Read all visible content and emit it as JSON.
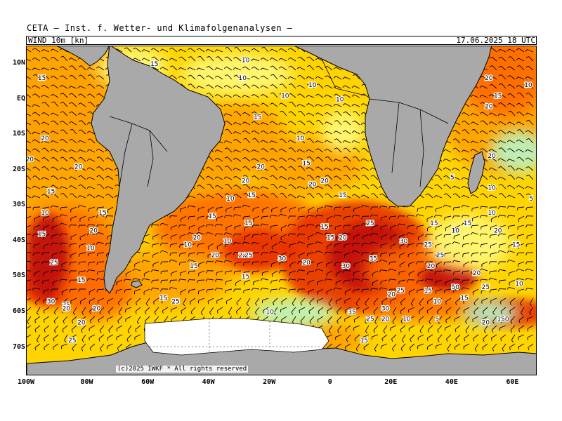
{
  "header": {
    "title": "CETA — Inst. f. Wetter- und Klimafolgenanalysen —",
    "parameter": "WIND 10m [kn]",
    "timestamp": "17.06.2025 18 UTC"
  },
  "map": {
    "lon_range": [
      -100,
      68
    ],
    "lat_range": [
      -78,
      15
    ],
    "lat_ticks": [
      {
        "value": 10,
        "label": "10N"
      },
      {
        "value": 0,
        "label": "EQ"
      },
      {
        "value": -10,
        "label": "10S"
      },
      {
        "value": -20,
        "label": "20S"
      },
      {
        "value": -30,
        "label": "30S"
      },
      {
        "value": -40,
        "label": "40S"
      },
      {
        "value": -50,
        "label": "50S"
      },
      {
        "value": -60,
        "label": "60S"
      },
      {
        "value": -70,
        "label": "70S"
      }
    ],
    "lon_ticks": [
      {
        "value": -100,
        "label": "100W"
      },
      {
        "value": -80,
        "label": "80W"
      },
      {
        "value": -60,
        "label": "60W"
      },
      {
        "value": -40,
        "label": "40W"
      },
      {
        "value": -20,
        "label": "20W"
      },
      {
        "value": 0,
        "label": "0"
      },
      {
        "value": 20,
        "label": "20E"
      },
      {
        "value": 40,
        "label": "40E"
      },
      {
        "value": 60,
        "label": "60E"
      }
    ],
    "colors": {
      "land": "#a9a9a9",
      "sea_calm": "#b9f5c8",
      "sea_light": "#fff97a",
      "sea_moderate": "#ffd400",
      "sea_fresh": "#ffa000",
      "sea_strong": "#ff6a00",
      "sea_gale": "#e83000",
      "sea_storm": "#c01010",
      "ice": "#ffffff"
    },
    "speed_labels": [
      {
        "text": "10",
        "lon": -28,
        "lat": 11
      },
      {
        "text": "15",
        "lon": -58,
        "lat": 10
      },
      {
        "text": "10",
        "lon": -29,
        "lat": 6
      },
      {
        "text": "15",
        "lon": -95,
        "lat": 6
      },
      {
        "text": "10",
        "lon": -6,
        "lat": 4
      },
      {
        "text": "10",
        "lon": -15,
        "lat": 1
      },
      {
        "text": "10",
        "lon": 3,
        "lat": 0
      },
      {
        "text": "20",
        "lon": 52,
        "lat": 6
      },
      {
        "text": "10",
        "lon": 65,
        "lat": 4
      },
      {
        "text": "15",
        "lon": 55,
        "lat": 1
      },
      {
        "text": "20",
        "lon": 52,
        "lat": -2
      },
      {
        "text": "15",
        "lon": -24,
        "lat": -5
      },
      {
        "text": "10",
        "lon": -10,
        "lat": -11
      },
      {
        "text": "20",
        "lon": -94,
        "lat": -11
      },
      {
        "text": "20",
        "lon": -99,
        "lat": -17
      },
      {
        "text": "20",
        "lon": 53,
        "lat": -16
      },
      {
        "text": "15",
        "lon": -8,
        "lat": -18
      },
      {
        "text": "20",
        "lon": -23,
        "lat": -19
      },
      {
        "text": "20",
        "lon": -83,
        "lat": -19
      },
      {
        "text": "5",
        "lon": 40,
        "lat": -22
      },
      {
        "text": "20",
        "lon": -2,
        "lat": -23
      },
      {
        "text": "20",
        "lon": -28,
        "lat": -23
      },
      {
        "text": "20",
        "lon": -6,
        "lat": -24
      },
      {
        "text": "10",
        "lon": 53,
        "lat": -25
      },
      {
        "text": "15",
        "lon": -92,
        "lat": -26
      },
      {
        "text": "15",
        "lon": 4,
        "lat": -27
      },
      {
        "text": "10",
        "lon": -33,
        "lat": -28
      },
      {
        "text": "15",
        "lon": -26,
        "lat": -27
      },
      {
        "text": "5",
        "lon": 66,
        "lat": -28
      },
      {
        "text": "10",
        "lon": -94,
        "lat": -32
      },
      {
        "text": "15",
        "lon": -75,
        "lat": -32
      },
      {
        "text": "15",
        "lon": -39,
        "lat": -33
      },
      {
        "text": "10",
        "lon": 53,
        "lat": -32
      },
      {
        "text": "15",
        "lon": -27,
        "lat": -35
      },
      {
        "text": "15",
        "lon": 34,
        "lat": -35
      },
      {
        "text": "15",
        "lon": 45,
        "lat": -35
      },
      {
        "text": "25",
        "lon": 13,
        "lat": -35
      },
      {
        "text": "15",
        "lon": -2,
        "lat": -36
      },
      {
        "text": "10",
        "lon": 41,
        "lat": -37
      },
      {
        "text": "20",
        "lon": 55,
        "lat": -37
      },
      {
        "text": "15",
        "lon": -95,
        "lat": -38
      },
      {
        "text": "20",
        "lon": -78,
        "lat": -37
      },
      {
        "text": "20",
        "lon": -44,
        "lat": -39
      },
      {
        "text": "15",
        "lon": 0,
        "lat": -39
      },
      {
        "text": "20",
        "lon": 4,
        "lat": -39
      },
      {
        "text": "10",
        "lon": -47,
        "lat": -41
      },
      {
        "text": "10",
        "lon": -34,
        "lat": -40
      },
      {
        "text": "30",
        "lon": 24,
        "lat": -40
      },
      {
        "text": "15",
        "lon": 61,
        "lat": -41
      },
      {
        "text": "10",
        "lon": -79,
        "lat": -42
      },
      {
        "text": "25",
        "lon": 32,
        "lat": -41
      },
      {
        "text": "20",
        "lon": -38,
        "lat": -44
      },
      {
        "text": "22",
        "lon": -29,
        "lat": -44
      },
      {
        "text": "25",
        "lon": -27,
        "lat": -44
      },
      {
        "text": "35",
        "lon": 14,
        "lat": -45
      },
      {
        "text": "25",
        "lon": 36,
        "lat": -44
      },
      {
        "text": "30",
        "lon": -16,
        "lat": -45
      },
      {
        "text": "25",
        "lon": -91,
        "lat": -46
      },
      {
        "text": "15",
        "lon": -45,
        "lat": -47
      },
      {
        "text": "20",
        "lon": -8,
        "lat": -46
      },
      {
        "text": "30",
        "lon": 5,
        "lat": -47
      },
      {
        "text": "20",
        "lon": 33,
        "lat": -47
      },
      {
        "text": "20",
        "lon": 48,
        "lat": -49
      },
      {
        "text": "15",
        "lon": -28,
        "lat": -50
      },
      {
        "text": "15",
        "lon": -82,
        "lat": -51
      },
      {
        "text": "10",
        "lon": 62,
        "lat": -52
      },
      {
        "text": "50",
        "lon": 41,
        "lat": -53
      },
      {
        "text": "25",
        "lon": 51,
        "lat": -53
      },
      {
        "text": "15",
        "lon": 32,
        "lat": -54
      },
      {
        "text": "20",
        "lon": 20,
        "lat": -55
      },
      {
        "text": "25",
        "lon": 23,
        "lat": -54
      },
      {
        "text": "15",
        "lon": -55,
        "lat": -56
      },
      {
        "text": "15",
        "lon": 44,
        "lat": -56
      },
      {
        "text": "25",
        "lon": -51,
        "lat": -57
      },
      {
        "text": "10",
        "lon": 35,
        "lat": -57
      },
      {
        "text": "30",
        "lon": -92,
        "lat": -57
      },
      {
        "text": "25",
        "lon": -87,
        "lat": -58
      },
      {
        "text": "20",
        "lon": -87,
        "lat": -59
      },
      {
        "text": "30",
        "lon": 18,
        "lat": -59
      },
      {
        "text": "20",
        "lon": -77,
        "lat": -59
      },
      {
        "text": "35",
        "lon": 7,
        "lat": -60
      },
      {
        "text": "10",
        "lon": -20,
        "lat": -60
      },
      {
        "text": "25",
        "lon": 13,
        "lat": -62
      },
      {
        "text": "20",
        "lon": 18,
        "lat": -62
      },
      {
        "text": "10",
        "lon": 25,
        "lat": -62
      },
      {
        "text": "5",
        "lon": 35,
        "lat": -62
      },
      {
        "text": "20",
        "lon": -82,
        "lat": -63
      },
      {
        "text": "20",
        "lon": 51,
        "lat": -63
      },
      {
        "text": "15",
        "lon": 56,
        "lat": -62
      },
      {
        "text": "0",
        "lon": 58,
        "lat": -62
      },
      {
        "text": "25",
        "lon": -85,
        "lat": -68
      },
      {
        "text": "15",
        "lon": 11,
        "lat": -68
      }
    ]
  },
  "copyright": "(c)2025 IWKF * All rights reserved"
}
